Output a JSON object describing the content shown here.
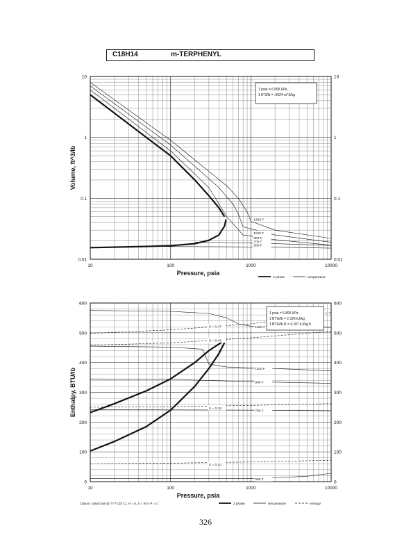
{
  "header": {
    "formula": "C18H14",
    "name": "m-TERPHENYL"
  },
  "page_number": "326",
  "chart_data": [
    {
      "type": "line",
      "xscale": "log",
      "yscale": "log",
      "xlim": [
        10,
        10000
      ],
      "ylim": [
        0.01,
        10
      ],
      "x_ticks": [
        "10",
        "100",
        "1000",
        "10000"
      ],
      "y_ticks": [
        "0.01",
        "0.1",
        "1",
        "10"
      ],
      "xlabel": "Pressure,  psia",
      "ylabel": "Volume, ft^3/lb",
      "grid": true,
      "conversion_box": [
        "1 psia = 6.895 kPa",
        "1 ft^3/lb = .0624 m^3/kg"
      ],
      "legend": [
        {
          "label": "2 phase",
          "style": "thick"
        },
        {
          "label": "temperature",
          "style": "thin"
        }
      ],
      "saturation_dome": {
        "vapor": [
          [
            10,
            5
          ],
          [
            20,
            2.5
          ],
          [
            50,
            1
          ],
          [
            100,
            0.5
          ],
          [
            200,
            0.2
          ],
          [
            300,
            0.11
          ],
          [
            400,
            0.07
          ],
          [
            470,
            0.05
          ]
        ],
        "liquid": [
          [
            10,
            0.0155
          ],
          [
            50,
            0.0162
          ],
          [
            100,
            0.0167
          ],
          [
            200,
            0.018
          ],
          [
            300,
            0.0205
          ],
          [
            400,
            0.025
          ],
          [
            470,
            0.035
          ],
          [
            490,
            0.045
          ]
        ]
      },
      "isotherms": [
        {
          "label": "1300 F",
          "points": [
            [
              10,
              8
            ],
            [
              100,
              0.9
            ],
            [
              500,
              0.16
            ],
            [
              700,
              0.1
            ],
            [
              900,
              0.06
            ],
            [
              1000,
              0.042
            ],
            [
              2000,
              0.03
            ],
            [
              10000,
              0.022
            ]
          ]
        },
        {
          "label": "1100 F",
          "points": [
            [
              10,
              7
            ],
            [
              100,
              0.75
            ],
            [
              400,
              0.15
            ],
            [
              600,
              0.08
            ],
            [
              700,
              0.055
            ],
            [
              800,
              0.034
            ],
            [
              2000,
              0.025
            ],
            [
              10000,
              0.019
            ]
          ]
        },
        {
          "label": "900 F",
          "points": [
            [
              10,
              6
            ],
            [
              100,
              0.6
            ],
            [
              300,
              0.15
            ],
            [
              500,
              0.05
            ],
            [
              800,
              0.025
            ],
            [
              2000,
              0.021
            ],
            [
              10000,
              0.017
            ]
          ]
        },
        {
          "label": "700 F",
          "points": [
            [
              200,
              0.019
            ],
            [
              500,
              0.0188
            ],
            [
              2000,
              0.018
            ],
            [
              10000,
              0.0168
            ]
          ]
        },
        {
          "label": "500 F",
          "points": [
            [
              50,
              0.0162
            ],
            [
              500,
              0.016
            ],
            [
              2000,
              0.0158
            ],
            [
              10000,
              0.0152
            ]
          ]
        }
      ],
      "isotherm_labels": [
        "1300 F",
        "1100 F",
        "900 F",
        "700 F",
        "500 F"
      ]
    },
    {
      "type": "line",
      "xscale": "log",
      "yscale": "linear",
      "xlim": [
        10,
        10000
      ],
      "ylim": [
        0,
        600
      ],
      "x_ticks": [
        "10",
        "100",
        "1000",
        "10000"
      ],
      "y_ticks": [
        "0",
        "100",
        "200",
        "300",
        "400",
        "500",
        "600"
      ],
      "xlabel": "Pressure,  psia",
      "ylabel": "Enthalpy, BTU/lb",
      "grid": true,
      "conversion_box": [
        "1 psia = 6.895 kPa",
        "1 BTU/lb = 2.326 kJ/kg",
        "1 BTU/lb R = 4.187 kJ/kg K"
      ],
      "legend": [
        {
          "label": "2 phase",
          "style": "thick"
        },
        {
          "label": "temperature",
          "style": "thin"
        },
        {
          "label": "entropy",
          "style": "dashed"
        }
      ],
      "datum_note": "Datum: Ideal Gas @ 77 F (25 C),  H = 0,  S = R ln P = 0",
      "saturation_dome": {
        "vapor": [
          [
            10,
            232
          ],
          [
            20,
            262
          ],
          [
            50,
            305
          ],
          [
            100,
            345
          ],
          [
            200,
            400
          ],
          [
            300,
            440
          ],
          [
            400,
            462
          ],
          [
            480,
            475
          ]
        ],
        "liquid": [
          [
            10,
            103
          ],
          [
            20,
            135
          ],
          [
            50,
            185
          ],
          [
            100,
            240
          ],
          [
            200,
            320
          ],
          [
            300,
            380
          ],
          [
            400,
            430
          ],
          [
            480,
            472
          ]
        ]
      },
      "isotherms": [
        {
          "label": "1300 F",
          "points": [
            [
              10,
              575
            ],
            [
              100,
              572
            ],
            [
              300,
              565
            ],
            [
              500,
              550
            ],
            [
              700,
              530
            ],
            [
              1000,
              522
            ],
            [
              3000,
              520
            ],
            [
              10000,
              518
            ]
          ]
        },
        {
          "label": "1100 F",
          "points": [
            [
              10,
              455
            ],
            [
              100,
              452
            ],
            [
              250,
              445
            ],
            [
              300,
              395
            ],
            [
              500,
              385
            ],
            [
              1000,
              382
            ],
            [
              3000,
              378
            ],
            [
              10000,
              372
            ]
          ]
        },
        {
          "label": "900 F",
          "points": [
            [
              10,
              345
            ],
            [
              100,
              344
            ],
            [
              200,
              341
            ],
            [
              1000,
              336
            ],
            [
              10000,
              330
            ]
          ]
        },
        {
          "label": "700 F",
          "points": [
            [
              10,
              242
            ],
            [
              1000,
              240
            ],
            [
              10000,
              238
            ]
          ]
        },
        {
          "label": "500 F",
          "points": [
            [
              10,
              10
            ],
            [
              1000,
              10
            ],
            [
              5000,
              18
            ],
            [
              10000,
              28
            ]
          ]
        }
      ],
      "isentropes": [
        {
          "label": "S = 0.47",
          "points": [
            [
              10,
              498
            ],
            [
              100,
              510
            ],
            [
              1000,
              530
            ],
            [
              10000,
              568
            ]
          ]
        },
        {
          "label": "S = 0.43",
          "points": [
            [
              10,
              458
            ],
            [
              100,
              466
            ],
            [
              1000,
              483
            ],
            [
              10000,
              505
            ]
          ]
        },
        {
          "label": "S = 0.33",
          "points": [
            [
              10,
              250
            ],
            [
              100,
              252
            ],
            [
              1000,
              256
            ],
            [
              10000,
              262
            ]
          ]
        },
        {
          "label": "S = 0.10",
          "points": [
            [
              10,
              60
            ],
            [
              100,
              62
            ],
            [
              1000,
              66
            ],
            [
              10000,
              72
            ]
          ]
        }
      ],
      "isotherm_labels": [
        "1300 F",
        "1100 F",
        "900 F",
        "700 F",
        "500 F"
      ],
      "isentrope_labels": [
        "S = 0.47",
        "S = 0.43",
        "S = 0.33",
        "S = 0.10"
      ]
    }
  ]
}
